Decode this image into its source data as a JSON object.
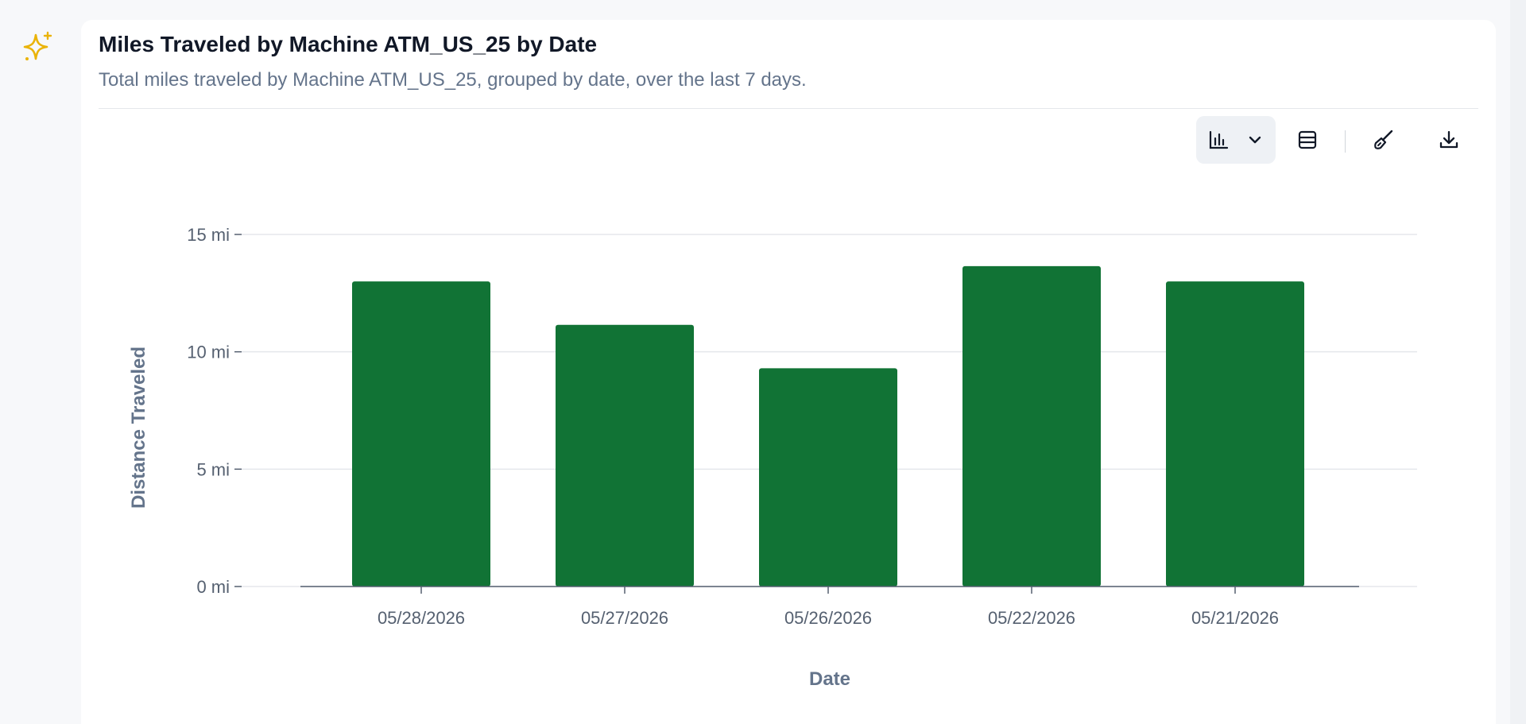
{
  "header": {
    "title": "Miles Traveled by Machine ATM_US_25 by Date",
    "subtitle": "Total miles traveled by Machine ATM_US_25, grouped by date, over the last 7 days."
  },
  "toolbar": {
    "icons": [
      "bar-chart-icon",
      "chevron-down-icon",
      "table-icon",
      "paintbrush-icon",
      "download-icon"
    ]
  },
  "colors": {
    "bar": "#117335",
    "accent_icon": "#eab308"
  },
  "chart_data": {
    "type": "bar",
    "categories": [
      "05/28/2026",
      "05/27/2026",
      "05/26/2026",
      "05/22/2026",
      "05/21/2026"
    ],
    "values": [
      13.0,
      11.15,
      9.3,
      13.65,
      13.0
    ],
    "xlabel": "Date",
    "ylabel": "Distance Traveled",
    "ylim": [
      0,
      15
    ],
    "yticks": [
      0,
      5,
      10,
      15
    ],
    "ytick_labels": [
      "0 mi",
      "5 mi",
      "10 mi",
      "15 mi"
    ],
    "grid": true,
    "legend": "none"
  }
}
